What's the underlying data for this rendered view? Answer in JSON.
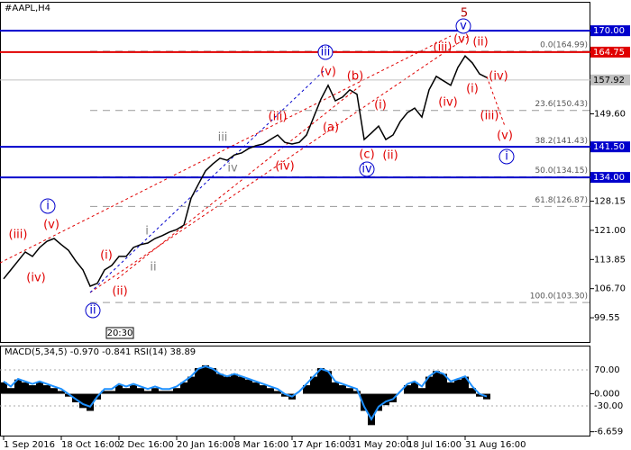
{
  "chart_data": [
    {
      "type": "line",
      "title": "#AAPL,H4",
      "color": "#000000",
      "values": [
        109.1,
        111.3,
        113.5,
        115.7,
        114.6,
        116.8,
        118.3,
        119.0,
        117.5,
        116.1,
        113.5,
        111.3,
        107.3,
        108.0,
        111.3,
        112.4,
        114.6,
        114.6,
        116.8,
        117.5,
        117.9,
        119.0,
        119.7,
        120.6,
        121.2,
        122.3,
        128.9,
        132.3,
        135.6,
        137.3,
        138.7,
        138.2,
        139.5,
        140.0,
        141.1,
        141.8,
        142.2,
        143.3,
        144.4,
        142.6,
        142.2,
        142.6,
        144.4,
        148.8,
        153.2,
        156.6,
        152.8,
        153.7,
        155.5,
        154.4,
        143.3,
        144.9,
        146.6,
        143.3,
        144.4,
        147.7,
        149.9,
        151.0,
        148.8,
        155.5,
        158.8,
        157.7,
        156.6,
        161.0,
        163.8,
        162.1,
        159.4,
        158.5
      ],
      "xticks": [
        {
          "value": 0,
          "label": "1 Sep 2016"
        },
        {
          "value": 8,
          "label": "18 Oct 16:00"
        },
        {
          "value": 16,
          "label": "2 Dec 16:00"
        },
        {
          "value": 24,
          "label": "20 Jan 16:00"
        },
        {
          "value": 32,
          "label": "8 Mar 16:00"
        },
        {
          "value": 40,
          "label": "17 Apr 16:00"
        },
        {
          "value": 48,
          "label": "31 May 20:00"
        },
        {
          "value": 56,
          "label": "18 Jul 16:00"
        },
        {
          "value": 64,
          "label": "31 Aug 16:00"
        }
      ],
      "ylim": [
        93.6,
        177.1
      ],
      "yticks": [
        {
          "value": 99.55,
          "label": "99.55"
        },
        {
          "value": 106.7,
          "label": "106.70"
        },
        {
          "value": 113.85,
          "label": "113.85"
        },
        {
          "value": 121.0,
          "label": "121.00"
        },
        {
          "value": 128.15,
          "label": "128.15"
        },
        {
          "value": 149.6,
          "label": "149.60"
        }
      ],
      "levels": [
        {
          "value": 170.0,
          "label": "170.00",
          "color": "#0000cc"
        },
        {
          "value": 164.75,
          "label": "164.75",
          "color": "#e00000"
        },
        {
          "value": 157.92,
          "label": "157.92",
          "color": "#c0c0c0"
        },
        {
          "value": 141.5,
          "label": "141.50",
          "color": "#0000cc"
        },
        {
          "value": 134.0,
          "label": "134.00",
          "color": "#0000cc"
        }
      ],
      "fib": [
        {
          "value": 164.99,
          "label": "0.0(164.99)"
        },
        {
          "value": 150.43,
          "label": "23.6(150.43)"
        },
        {
          "value": 141.43,
          "label": "38.2(141.43)"
        },
        {
          "value": 134.15,
          "label": "50.0(134.15)"
        },
        {
          "value": 126.87,
          "label": "61.8(126.87)"
        },
        {
          "value": 103.3,
          "label": "100.0(103.30)"
        }
      ],
      "annotations": [
        {
          "text": "(iii)",
          "color": "#e00000"
        },
        {
          "text": "(v)",
          "color": "#e00000"
        },
        {
          "text": "(iv)",
          "color": "#e00000"
        },
        {
          "text": "i",
          "color": "#0000cc",
          "circled": true
        },
        {
          "text": "(i)",
          "color": "#e00000"
        },
        {
          "text": "(ii)",
          "color": "#e00000"
        },
        {
          "text": "ii",
          "color": "#0000cc",
          "circled": true
        },
        {
          "text": "i",
          "color": "#808080"
        },
        {
          "text": "ii",
          "color": "#808080"
        },
        {
          "text": "iii",
          "color": "#808080"
        },
        {
          "text": "iv",
          "color": "#808080"
        },
        {
          "text": "(iii)",
          "color": "#e00000"
        },
        {
          "text": "(iv)",
          "color": "#e00000"
        },
        {
          "text": "iii",
          "color": "#0000cc",
          "circled": true
        },
        {
          "text": "(v)",
          "color": "#e00000"
        },
        {
          "text": "(b)",
          "color": "#e00000"
        },
        {
          "text": "(a)",
          "color": "#e00000"
        },
        {
          "text": "(c)",
          "color": "#e00000"
        },
        {
          "text": "iv",
          "color": "#0000cc",
          "circled": true
        },
        {
          "text": "(i)",
          "color": "#e00000"
        },
        {
          "text": "(ii)",
          "color": "#e00000"
        },
        {
          "text": "(iii)",
          "color": "#e00000"
        },
        {
          "text": "(iv)",
          "color": "#e00000"
        },
        {
          "text": "(v)",
          "color": "#e00000"
        },
        {
          "text": "v",
          "color": "#0000cc",
          "circled": true
        },
        {
          "text": "5",
          "color": "#b00000"
        },
        {
          "text": "(ii)",
          "color": "#e00000"
        },
        {
          "text": "(i)",
          "color": "#e00000"
        },
        {
          "text": "(iv)",
          "color": "#e00000"
        },
        {
          "text": "(iii)",
          "color": "#e00000"
        },
        {
          "text": "(v)",
          "color": "#e00000"
        },
        {
          "text": "i",
          "color": "#0000cc",
          "circled": true
        }
      ],
      "time_label": "20:30"
    },
    {
      "type": "bar",
      "title": "MACD(5,34,5) -0.970 -0.841 RSI(14) 38.89",
      "series": [
        {
          "color": "#000000",
          "values": [
            2,
            1,
            2.5,
            2,
            1.5,
            2,
            1.5,
            1,
            0.5,
            -0.5,
            -1.5,
            -2.5,
            -3,
            -1,
            0.5,
            0.5,
            1.5,
            1,
            1.5,
            1,
            0.5,
            1,
            0.5,
            0.5,
            1,
            2,
            3,
            4.5,
            5,
            4.5,
            3.5,
            3,
            3.5,
            3,
            2.5,
            2,
            1.5,
            1,
            0.5,
            -0.5,
            -1,
            0,
            1.5,
            3,
            4.5,
            4,
            2,
            1.5,
            1,
            0.5,
            -3,
            -5.5,
            -3,
            -2,
            -1.5,
            0,
            1.5,
            2,
            1,
            3,
            4,
            3.5,
            2,
            2.5,
            3,
            1,
            -0.5,
            -0.97
          ]
        },
        {
          "color": "#1e90ff",
          "axis": "y2",
          "values": [
            38,
            24,
            45,
            38,
            31,
            38,
            31,
            24,
            17,
            3,
            -11,
            -25,
            -32,
            -4,
            17,
            17,
            31,
            24,
            31,
            24,
            17,
            24,
            17,
            17,
            24,
            38,
            52,
            73,
            80,
            73,
            59,
            52,
            59,
            52,
            45,
            38,
            31,
            24,
            17,
            3,
            -4,
            10,
            31,
            52,
            73,
            66,
            38,
            31,
            24,
            17,
            -32,
            -67,
            -32,
            -18,
            -11,
            10,
            31,
            38,
            24,
            52,
            66,
            59,
            38,
            45,
            52,
            24,
            3,
            -4
          ]
        }
      ],
      "ylim": [
        -7.5,
        8.3
      ],
      "yticks": [
        {
          "value": 0,
          "label": "0.000"
        },
        {
          "value": -6.659,
          "label": "-6.659"
        }
      ],
      "y2lim": [
        -115,
        135
      ],
      "y2ticks": [
        {
          "value": 70,
          "label": "70.00"
        },
        {
          "value": -30,
          "label": "-30.00"
        }
      ]
    }
  ]
}
